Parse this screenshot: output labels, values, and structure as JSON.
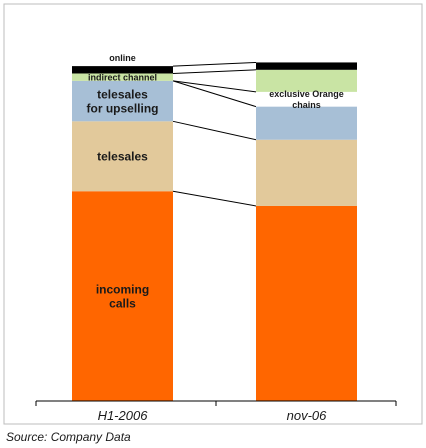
{
  "chart_data": {
    "type": "bar",
    "stacked": true,
    "normalized_100": true,
    "categories": [
      "H1-2006",
      "nov-06"
    ],
    "series": [
      {
        "name": "incoming calls",
        "values": [
          57,
          53
        ],
        "color": "#ff6600"
      },
      {
        "name": "telesales",
        "values": [
          19,
          18
        ],
        "color": "#e2c99b"
      },
      {
        "name": "telesales for upselling",
        "values": [
          11,
          9
        ],
        "color": "#a7bfd6"
      },
      {
        "name": "exclusive Orange chains",
        "values": [
          0,
          4
        ],
        "color": "#ffffff"
      },
      {
        "name": "indirect channel",
        "values": [
          2,
          6
        ],
        "color": "#c9e4a4"
      },
      {
        "name": "online",
        "values": [
          2,
          2
        ],
        "color": "#000000"
      }
    ],
    "segment_labels": {
      "incoming calls": [
        "incoming",
        "calls"
      ],
      "telesales": [
        "telesales"
      ],
      "telesales for upselling": [
        "telesales",
        "for upselling"
      ],
      "exclusive Orange chains": [
        "exclusive Orange",
        "chains"
      ],
      "indirect channel": [
        "indirect channel"
      ],
      "online": [
        "online"
      ]
    },
    "connector_lines": true,
    "grid": false,
    "legend": "none",
    "title": "",
    "xlabel": "",
    "ylabel": ""
  },
  "footer": {
    "source": "Source: Company Data"
  }
}
